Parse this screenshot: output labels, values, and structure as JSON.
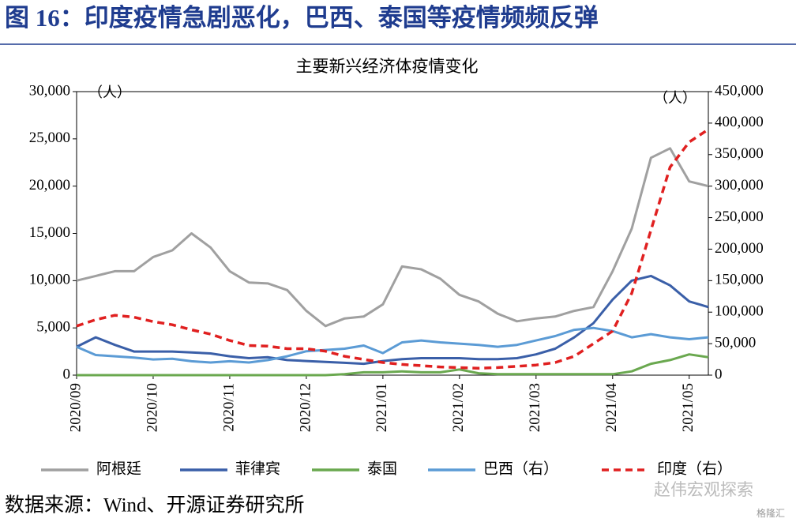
{
  "header": {
    "title": "图 16：印度疫情急剧恶化，巴西、泰国等疫情频频反弹"
  },
  "chart_data": {
    "type": "line",
    "title": "主要新兴经济体疫情变化",
    "y_unit": "（人）",
    "y2_unit": "（人）",
    "categories": [
      "2020/09",
      null,
      null,
      null,
      "2020/10",
      null,
      null,
      null,
      "2020/11",
      null,
      null,
      null,
      "2020/12",
      null,
      null,
      null,
      "2021/01",
      null,
      null,
      null,
      "2021/02",
      null,
      null,
      null,
      "2021/03",
      null,
      null,
      null,
      "2021/04",
      null,
      null,
      null,
      "2021/05",
      null
    ],
    "ylim": [
      0,
      30000
    ],
    "yticks": [
      0,
      {
        "value": 5000,
        "label": "5,000"
      },
      {
        "value": 10000,
        "label": "10,000"
      },
      {
        "value": 15000,
        "label": "15,000"
      },
      {
        "value": 20000,
        "label": "20,000"
      },
      {
        "value": 25000,
        "label": "25,000"
      },
      {
        "value": 30000,
        "label": "30,000"
      }
    ],
    "y2lim": [
      0,
      450000
    ],
    "y2ticks": [
      0,
      {
        "value": 50000,
        "label": "50,000"
      },
      {
        "value": 100000,
        "label": "100,000"
      },
      {
        "value": 150000,
        "label": "150,000"
      },
      {
        "value": 200000,
        "label": "200,000"
      },
      {
        "value": 250000,
        "label": "250,000"
      },
      {
        "value": 300000,
        "label": "300,000"
      },
      {
        "value": 350000,
        "label": "350,000"
      },
      {
        "value": 400000,
        "label": "400,000"
      },
      {
        "value": 450000,
        "label": "450,000"
      }
    ],
    "grid": false,
    "series": [
      {
        "name": "阿根廷",
        "color": "#a0a0a0",
        "style": "solid",
        "values": [
          10000,
          10500,
          11000,
          11000,
          12500,
          13200,
          15000,
          13500,
          11000,
          9800,
          9700,
          9000,
          6800,
          5200,
          6000,
          6200,
          7500,
          11500,
          11200,
          10200,
          8500,
          7800,
          6500,
          5700,
          6000,
          6200,
          6800,
          7200,
          11000,
          15500,
          23000,
          24000,
          20500,
          20000
        ]
      },
      {
        "name": "菲律宾",
        "color": "#3a5fa8",
        "style": "solid",
        "values": [
          3000,
          4000,
          3200,
          2500,
          2500,
          2500,
          2400,
          2300,
          2000,
          1800,
          1900,
          1600,
          1500,
          1400,
          1300,
          1200,
          1500,
          1700,
          1800,
          1800,
          1800,
          1700,
          1700,
          1800,
          2200,
          2800,
          4000,
          5500,
          8000,
          10000,
          10500,
          9500,
          7800,
          7200
        ]
      },
      {
        "name": "泰国",
        "color": "#6aa84f",
        "style": "solid",
        "values": [
          0,
          0,
          0,
          0,
          0,
          0,
          0,
          0,
          0,
          0,
          0,
          0,
          0,
          0,
          100,
          300,
          300,
          400,
          300,
          300,
          600,
          200,
          100,
          100,
          100,
          100,
          100,
          100,
          100,
          400,
          1200,
          1600,
          2200,
          1900
        ]
      },
      {
        "name": "巴西（右）",
        "color": "#5b9bd5",
        "style": "solid",
        "axis": "y2",
        "values": [
          45000,
          32000,
          30000,
          28000,
          25000,
          26000,
          22000,
          20000,
          22000,
          20000,
          24000,
          30000,
          38000,
          40000,
          42000,
          47000,
          35000,
          52000,
          55000,
          52000,
          50000,
          48000,
          45000,
          48000,
          55000,
          62000,
          72000,
          75000,
          70000,
          60000,
          65000,
          60000,
          57000,
          60000
        ]
      },
      {
        "name": "印度（右）",
        "color": "#e02020",
        "style": "dashed",
        "axis": "y2",
        "values": [
          78000,
          88000,
          95000,
          92000,
          85000,
          80000,
          72000,
          65000,
          55000,
          47000,
          46000,
          42000,
          42000,
          38000,
          30000,
          25000,
          20000,
          17000,
          15000,
          13000,
          12000,
          11000,
          12000,
          14000,
          16000,
          20000,
          30000,
          50000,
          70000,
          130000,
          230000,
          330000,
          370000,
          390000
        ]
      }
    ]
  },
  "footer": {
    "source": "数据来源：Wind、开源证券研究所",
    "watermark": "赵伟宏观探索",
    "badge": "格隆汇"
  }
}
